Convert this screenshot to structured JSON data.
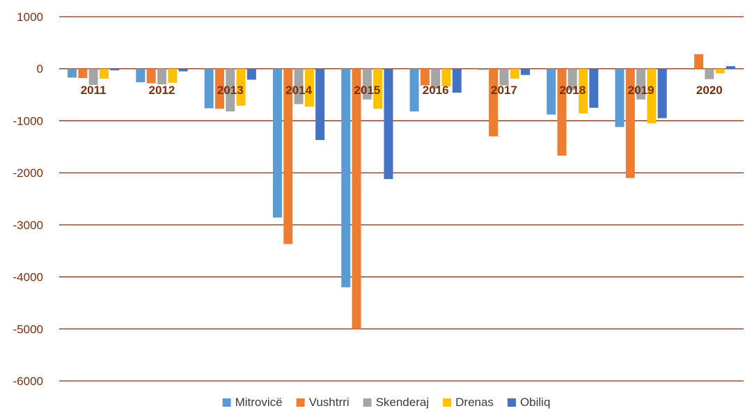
{
  "chart_data": {
    "type": "bar",
    "title": "",
    "xlabel": "",
    "ylabel": "",
    "ylim": [
      -6000,
      1000
    ],
    "yticks": [
      1000,
      0,
      -1000,
      -2000,
      -3000,
      -4000,
      -5000,
      -6000
    ],
    "grid": true,
    "legend_position": "bottom",
    "categories": [
      "2011",
      "2012",
      "2013",
      "2014",
      "2015",
      "2016",
      "2017",
      "2018",
      "2019",
      "2020"
    ],
    "series": [
      {
        "name": "Mitrovicë",
        "color": "#5b9bd5",
        "values": [
          -170,
          -260,
          -760,
          -2860,
          -4200,
          -820,
          -20,
          -880,
          -1120,
          0
        ]
      },
      {
        "name": "Vushtrri",
        "color": "#ed7d31",
        "values": [
          -180,
          -280,
          -770,
          -3370,
          -5000,
          -320,
          -1300,
          -1670,
          -2100,
          280
        ]
      },
      {
        "name": "Skenderaj",
        "color": "#a5a5a5",
        "values": [
          -310,
          -300,
          -820,
          -680,
          -590,
          -380,
          -320,
          -410,
          -590,
          -200
        ]
      },
      {
        "name": "Drenas",
        "color": "#ffc000",
        "values": [
          -190,
          -270,
          -710,
          -730,
          -770,
          -340,
          -190,
          -860,
          -1050,
          -90
        ]
      },
      {
        "name": "Obiliq",
        "color": "#4472c4",
        "values": [
          -30,
          -50,
          -210,
          -1370,
          -2120,
          -460,
          -120,
          -750,
          -950,
          50
        ]
      }
    ]
  }
}
